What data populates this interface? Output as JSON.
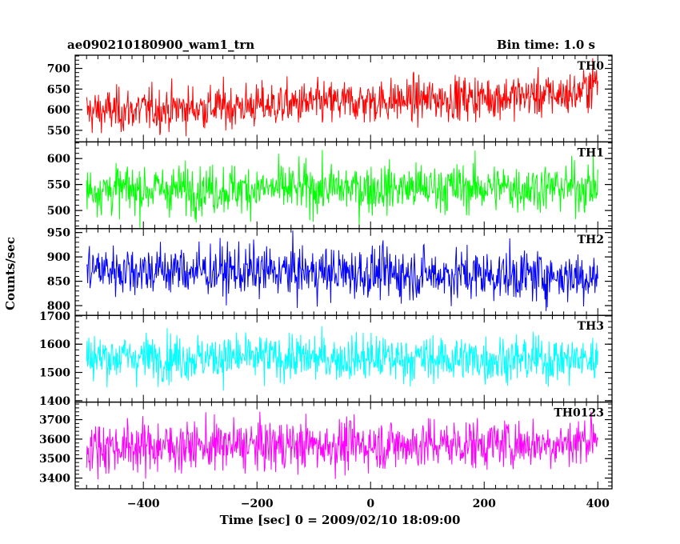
{
  "header": {
    "left_title": "ae090210180900_wam1_trn",
    "right_title": "Bin time: 1.0 s"
  },
  "chart_data": {
    "type": "line",
    "title": "ae090210180900_wam1_trn",
    "subtitle": "Bin time: 1.0 s",
    "xlabel": "Time [sec] 0 = 2009/02/10 18:09:00",
    "ylabel": "Counts/sec",
    "xlim": [
      -520,
      425
    ],
    "x_ticks": [
      -400,
      -200,
      0,
      200,
      400
    ],
    "x_tick_labels": [
      "−400",
      "−200",
      "0",
      "200",
      "400"
    ],
    "x_range_data": [
      -500,
      400
    ],
    "bin_time_s": 1.0,
    "grid": false,
    "legend": "none",
    "series": [
      {
        "name": "TH0",
        "color": "#ff0000",
        "ylim": [
          522,
          732
        ],
        "yticks": [
          550,
          600,
          650,
          700
        ],
        "ytick_labels": [
          "550",
          "600",
          "650",
          "700"
        ],
        "mean_start": 595,
        "mean_end": 640,
        "amp": 45,
        "end_rise": 30
      },
      {
        "name": "TH1",
        "color": "#00ff00",
        "ylim": [
          465,
          632
        ],
        "yticks": [
          500,
          550,
          600
        ],
        "ytick_labels": [
          "500",
          "550",
          "600"
        ],
        "mean_start": 540,
        "mean_end": 545,
        "amp": 40,
        "end_rise": 0
      },
      {
        "name": "TH2",
        "color": "#0000ff",
        "ylim": [
          780,
          958
        ],
        "yticks": [
          800,
          850,
          900,
          950
        ],
        "ytick_labels": [
          "800",
          "850",
          "900",
          "950"
        ],
        "mean_start": 875,
        "mean_end": 860,
        "amp": 45,
        "end_rise": 0
      },
      {
        "name": "TH3",
        "color": "#00ffff",
        "ylim": [
          1395,
          1702
        ],
        "yticks": [
          1400,
          1500,
          1600,
          1700
        ],
        "ytick_labels": [
          "1400",
          "1500",
          "1600",
          "1700"
        ],
        "mean_start": 1555,
        "mean_end": 1545,
        "amp": 70,
        "end_rise": 0
      },
      {
        "name": "TH0123",
        "color": "#ff00ff",
        "ylim": [
          3345,
          3790
        ],
        "yticks": [
          3400,
          3500,
          3600,
          3700
        ],
        "ytick_labels": [
          "3400",
          "3500",
          "3600",
          "3700"
        ],
        "mean_start": 3560,
        "mean_end": 3580,
        "amp": 110,
        "end_rise": 50
      }
    ]
  }
}
